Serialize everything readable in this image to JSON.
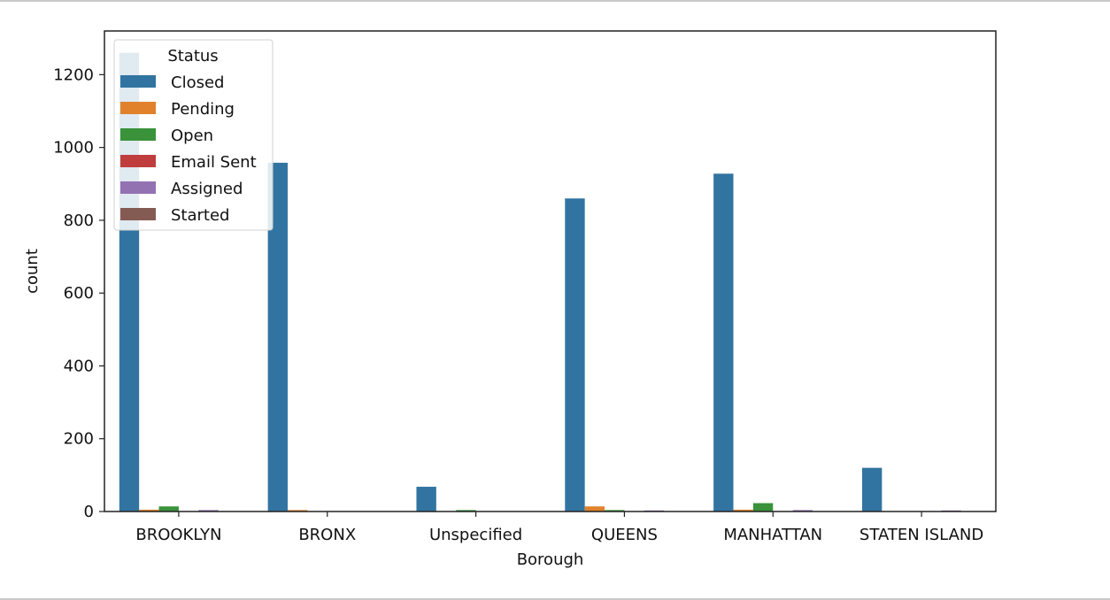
{
  "chart_data": {
    "type": "bar",
    "xlabel": "Borough",
    "ylabel": "count",
    "categories": [
      "BROOKLYN",
      "BRONX",
      "Unspecified",
      "QUEENS",
      "MANHATTAN",
      "STATEN ISLAND"
    ],
    "ylim": [
      0,
      1320
    ],
    "yticks": [
      0,
      200,
      400,
      600,
      800,
      1000,
      1200
    ],
    "grid": false,
    "legend": {
      "title": "Status",
      "placement": "top-left"
    },
    "series": [
      {
        "name": "Closed",
        "color": "#3274a1",
        "values": [
          1260,
          958,
          68,
          860,
          928,
          120
        ]
      },
      {
        "name": "Pending",
        "color": "#e1812c",
        "values": [
          5,
          4,
          0,
          14,
          5,
          0
        ]
      },
      {
        "name": "Open",
        "color": "#3a923a",
        "values": [
          14,
          0,
          4,
          4,
          23,
          0
        ]
      },
      {
        "name": "Email Sent",
        "color": "#c03d3e",
        "values": [
          0,
          0,
          0,
          0,
          0,
          0
        ]
      },
      {
        "name": "Assigned",
        "color": "#9372b2",
        "values": [
          4,
          0,
          0,
          3,
          4,
          3
        ]
      },
      {
        "name": "Started",
        "color": "#845b53",
        "values": [
          0,
          0,
          0,
          0,
          0,
          0
        ]
      }
    ]
  }
}
